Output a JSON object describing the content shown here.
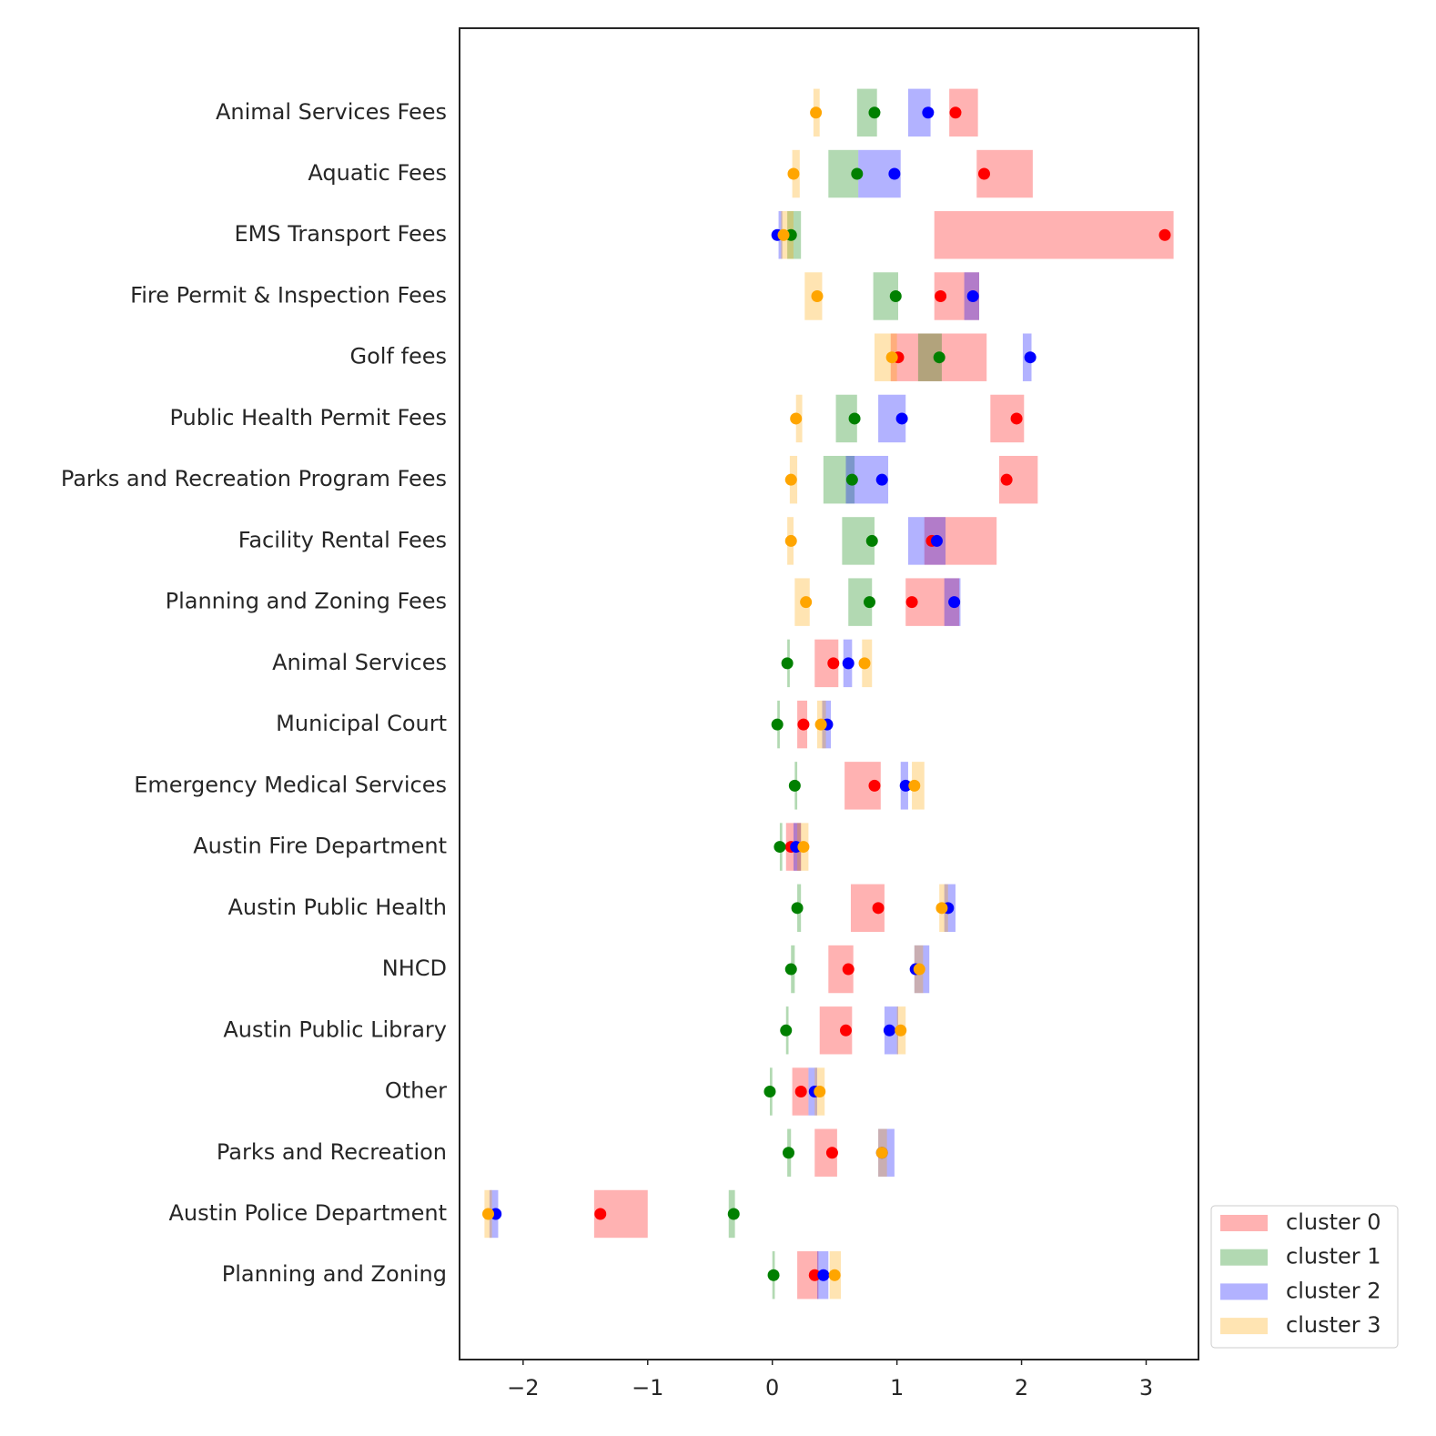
{
  "chart_data": {
    "type": "range-dot",
    "categories": [
      "Animal Services Fees",
      "Aquatic Fees",
      "EMS Transport Fees",
      "Fire Permit & Inspection Fees",
      "Golf fees",
      "Public Health Permit Fees",
      "Parks and Recreation Program Fees",
      "Facility Rental Fees",
      "Planning and Zoning Fees",
      "Animal Services",
      "Municipal Court",
      "Emergency Medical Services",
      "Austin Fire Department",
      "Austin Public Health",
      "NHCD",
      "Austin Public Library",
      "Other",
      "Parks and Recreation",
      "Austin Police Department",
      "Planning and Zoning"
    ],
    "series": [
      {
        "name": "cluster 0",
        "color": "red",
        "values": [
          1.47,
          1.7,
          3.15,
          1.35,
          1.01,
          1.96,
          1.88,
          1.28,
          1.12,
          0.49,
          0.25,
          0.82,
          0.15,
          0.85,
          0.61,
          0.59,
          0.23,
          0.48,
          -1.38,
          0.34
        ],
        "lows": [
          1.42,
          1.64,
          1.3,
          1.3,
          0.95,
          1.75,
          1.82,
          1.22,
          1.07,
          0.34,
          0.2,
          0.58,
          0.11,
          0.63,
          0.45,
          0.38,
          0.16,
          0.34,
          -1.43,
          0.2
        ],
        "highs": [
          1.65,
          2.09,
          3.22,
          1.66,
          1.72,
          2.02,
          2.13,
          1.8,
          1.5,
          0.53,
          0.28,
          0.87,
          0.23,
          0.9,
          0.65,
          0.64,
          0.29,
          0.52,
          -1.0,
          0.37
        ]
      },
      {
        "name": "cluster 1",
        "color": "green",
        "values": [
          0.82,
          0.68,
          0.15,
          0.99,
          1.34,
          0.66,
          0.64,
          0.8,
          0.78,
          0.12,
          0.04,
          0.18,
          0.06,
          0.2,
          0.15,
          0.11,
          -0.02,
          0.13,
          -0.31,
          0.01
        ],
        "lows": [
          0.68,
          0.45,
          0.12,
          0.81,
          1.17,
          0.51,
          0.41,
          0.56,
          0.61,
          0.12,
          0.04,
          0.18,
          0.06,
          0.2,
          0.15,
          0.11,
          -0.02,
          0.12,
          -0.35,
          0.0
        ],
        "highs": [
          0.84,
          0.69,
          0.23,
          1.01,
          1.36,
          0.68,
          0.66,
          0.82,
          0.8,
          0.14,
          0.06,
          0.2,
          0.08,
          0.23,
          0.18,
          0.13,
          0.0,
          0.15,
          -0.3,
          0.02
        ]
      },
      {
        "name": "cluster 2",
        "color": "blue",
        "values": [
          1.25,
          0.98,
          0.04,
          1.61,
          2.07,
          1.04,
          0.88,
          1.32,
          1.46,
          0.61,
          0.44,
          1.07,
          0.19,
          1.41,
          1.15,
          0.94,
          0.34,
          0.88,
          -2.22,
          0.41
        ],
        "lows": [
          1.09,
          0.69,
          0.05,
          1.54,
          2.01,
          0.85,
          0.59,
          1.09,
          1.38,
          0.57,
          0.4,
          1.03,
          0.17,
          1.38,
          1.14,
          0.9,
          0.29,
          0.85,
          -2.27,
          0.36
        ],
        "highs": [
          1.27,
          1.03,
          0.08,
          1.66,
          2.08,
          1.07,
          0.93,
          1.39,
          1.51,
          0.64,
          0.47,
          1.09,
          0.23,
          1.47,
          1.26,
          1.01,
          0.36,
          0.98,
          -2.2,
          0.45
        ]
      },
      {
        "name": "cluster 3",
        "color": "orange",
        "values": [
          0.35,
          0.17,
          0.09,
          0.36,
          0.96,
          0.19,
          0.15,
          0.15,
          0.27,
          0.74,
          0.39,
          1.14,
          0.25,
          1.36,
          1.18,
          1.03,
          0.38,
          0.88,
          -2.28,
          0.5
        ],
        "lows": [
          0.33,
          0.16,
          0.07,
          0.26,
          0.82,
          0.19,
          0.14,
          0.12,
          0.18,
          0.72,
          0.36,
          1.12,
          0.2,
          1.34,
          1.14,
          1.0,
          0.34,
          0.85,
          -2.31,
          0.46
        ],
        "highs": [
          0.38,
          0.22,
          0.17,
          0.4,
          1.0,
          0.24,
          0.2,
          0.17,
          0.3,
          0.8,
          0.43,
          1.22,
          0.29,
          1.41,
          1.21,
          1.07,
          0.42,
          0.92,
          -2.25,
          0.55
        ]
      }
    ],
    "xlim": [
      -2.51,
      3.42
    ],
    "xticks": [
      {
        "value": -2,
        "label": "−2"
      },
      {
        "value": -1,
        "label": "−1"
      },
      0,
      1,
      2,
      3
    ],
    "grid": false,
    "legend": "right"
  }
}
